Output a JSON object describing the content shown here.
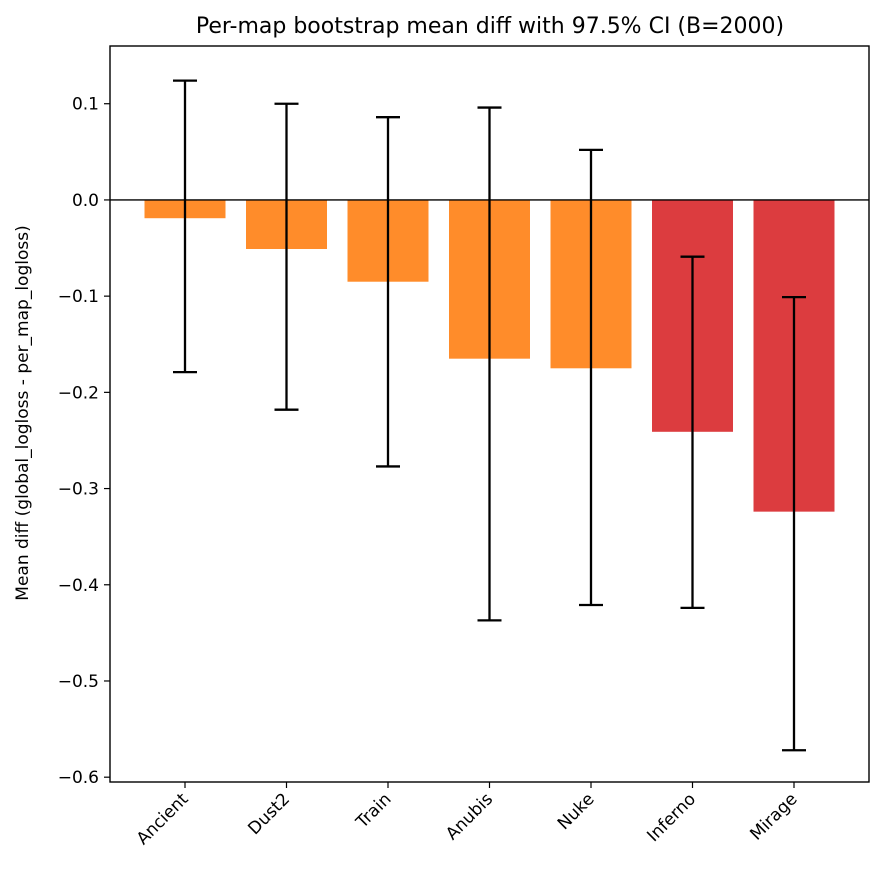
{
  "chart_data": {
    "type": "bar",
    "title": "Per-map bootstrap mean diff with 97.5% CI (B=2000)",
    "xlabel": "",
    "ylabel": "Mean diff (global_logloss - per_map_logloss)",
    "ylim": [
      -0.605,
      0.16
    ],
    "yticks": [
      0.1,
      0.0,
      -0.1,
      -0.2,
      -0.3,
      -0.4,
      -0.5,
      -0.6
    ],
    "ytick_labels": [
      "0.1",
      "0.0",
      "−0.1",
      "−0.2",
      "−0.3",
      "−0.4",
      "−0.5",
      "−0.6"
    ],
    "grid": false,
    "zero_line": true,
    "categories": [
      "Ancient",
      "Dust2",
      "Train",
      "Anubis",
      "Nuke",
      "Inferno",
      "Mirage"
    ],
    "values": [
      -0.019,
      -0.051,
      -0.085,
      -0.165,
      -0.175,
      -0.241,
      -0.324
    ],
    "ci_low": [
      -0.179,
      -0.218,
      -0.277,
      -0.437,
      -0.421,
      -0.424,
      -0.572
    ],
    "ci_high": [
      0.124,
      0.1,
      0.086,
      0.096,
      0.052,
      -0.059,
      -0.101
    ],
    "colors": [
      "#ff8c2a",
      "#ff8c2a",
      "#ff8c2a",
      "#ff8c2a",
      "#ff8c2a",
      "#dc3c3f",
      "#dc3c3f"
    ],
    "errorbar_color": "#000000"
  }
}
